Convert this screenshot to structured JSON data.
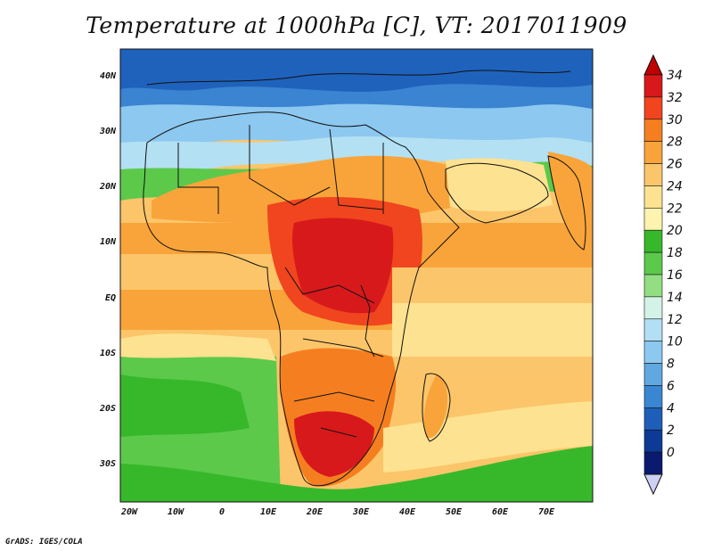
{
  "title": "Temperature at 1000hPa [C], VT: 2017011909",
  "credit": "GrADS: IGES/COLA",
  "map": {
    "lat_labels": [
      "40N",
      "30N",
      "20N",
      "10N",
      "EQ",
      "10S",
      "20S",
      "30S"
    ],
    "lon_labels": [
      "20W",
      "10W",
      "0",
      "10E",
      "20E",
      "30E",
      "40E",
      "50E",
      "60E",
      "70E"
    ]
  },
  "colorbar": {
    "levels": [
      "34",
      "32",
      "30",
      "28",
      "26",
      "24",
      "22",
      "20",
      "18",
      "16",
      "14",
      "12",
      "10",
      "8",
      "6",
      "4",
      "2",
      "0"
    ],
    "colors": [
      "#d7191c",
      "#f0451e",
      "#f57f20",
      "#f9a43a",
      "#fbc66b",
      "#fde291",
      "#fff3b0",
      "#37b82b",
      "#5cc94b",
      "#93dd83",
      "#d4f3e8",
      "#b3dff5",
      "#8dc8f0",
      "#5fa8e2",
      "#3a86d3",
      "#1d5fb8",
      "#0d3a96",
      "#0a1a70"
    ],
    "over_color": "#c00000",
    "under_color": "#cfd0f5"
  }
}
